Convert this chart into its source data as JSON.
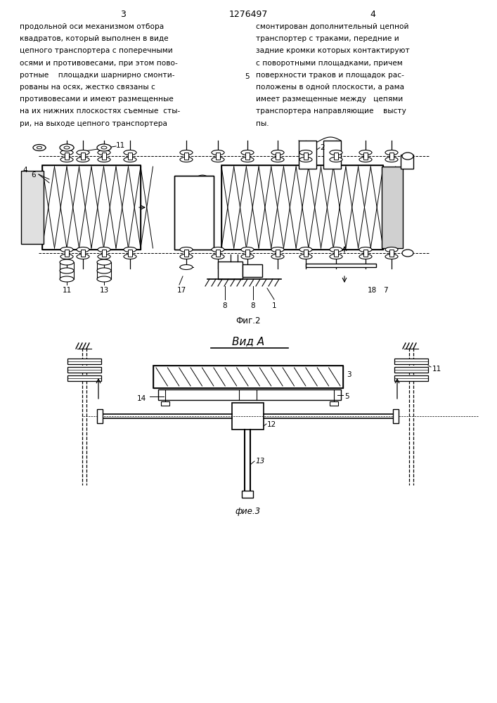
{
  "bg_color": "#ffffff",
  "page_number_left": "3",
  "page_number_center": "1276497",
  "page_number_right": "4",
  "left_text": "продольной оси механизмом отбора\nквадратов, который выполнен в виде\nцепного транспортера с поперечными\nосями и противовесами, при этом пово-\nротные    площадки шарнирно смонти-\nрованы на осях, жестко связаны с\nпротивовесами и имеют размещенные\nна их нижних плоскостях съемные  сты-\nри, на выходе цепного транспортера",
  "right_text": "смонтирован дополнительный цепной\nтранспортер с траками, передние и\nзадние кромки которых контактируют\nс поворотными площадками, причем\nповерхности траков и площадок рас-\nположены в одной плоскости, а рама\nимеет размещенные между   цепями\nтранспортера направляющие    выcту\nпы.",
  "line_number_5": "5",
  "fig2_caption": "Фиг.2",
  "fig3_title": "Вид А",
  "fig3_caption": "фие.3"
}
